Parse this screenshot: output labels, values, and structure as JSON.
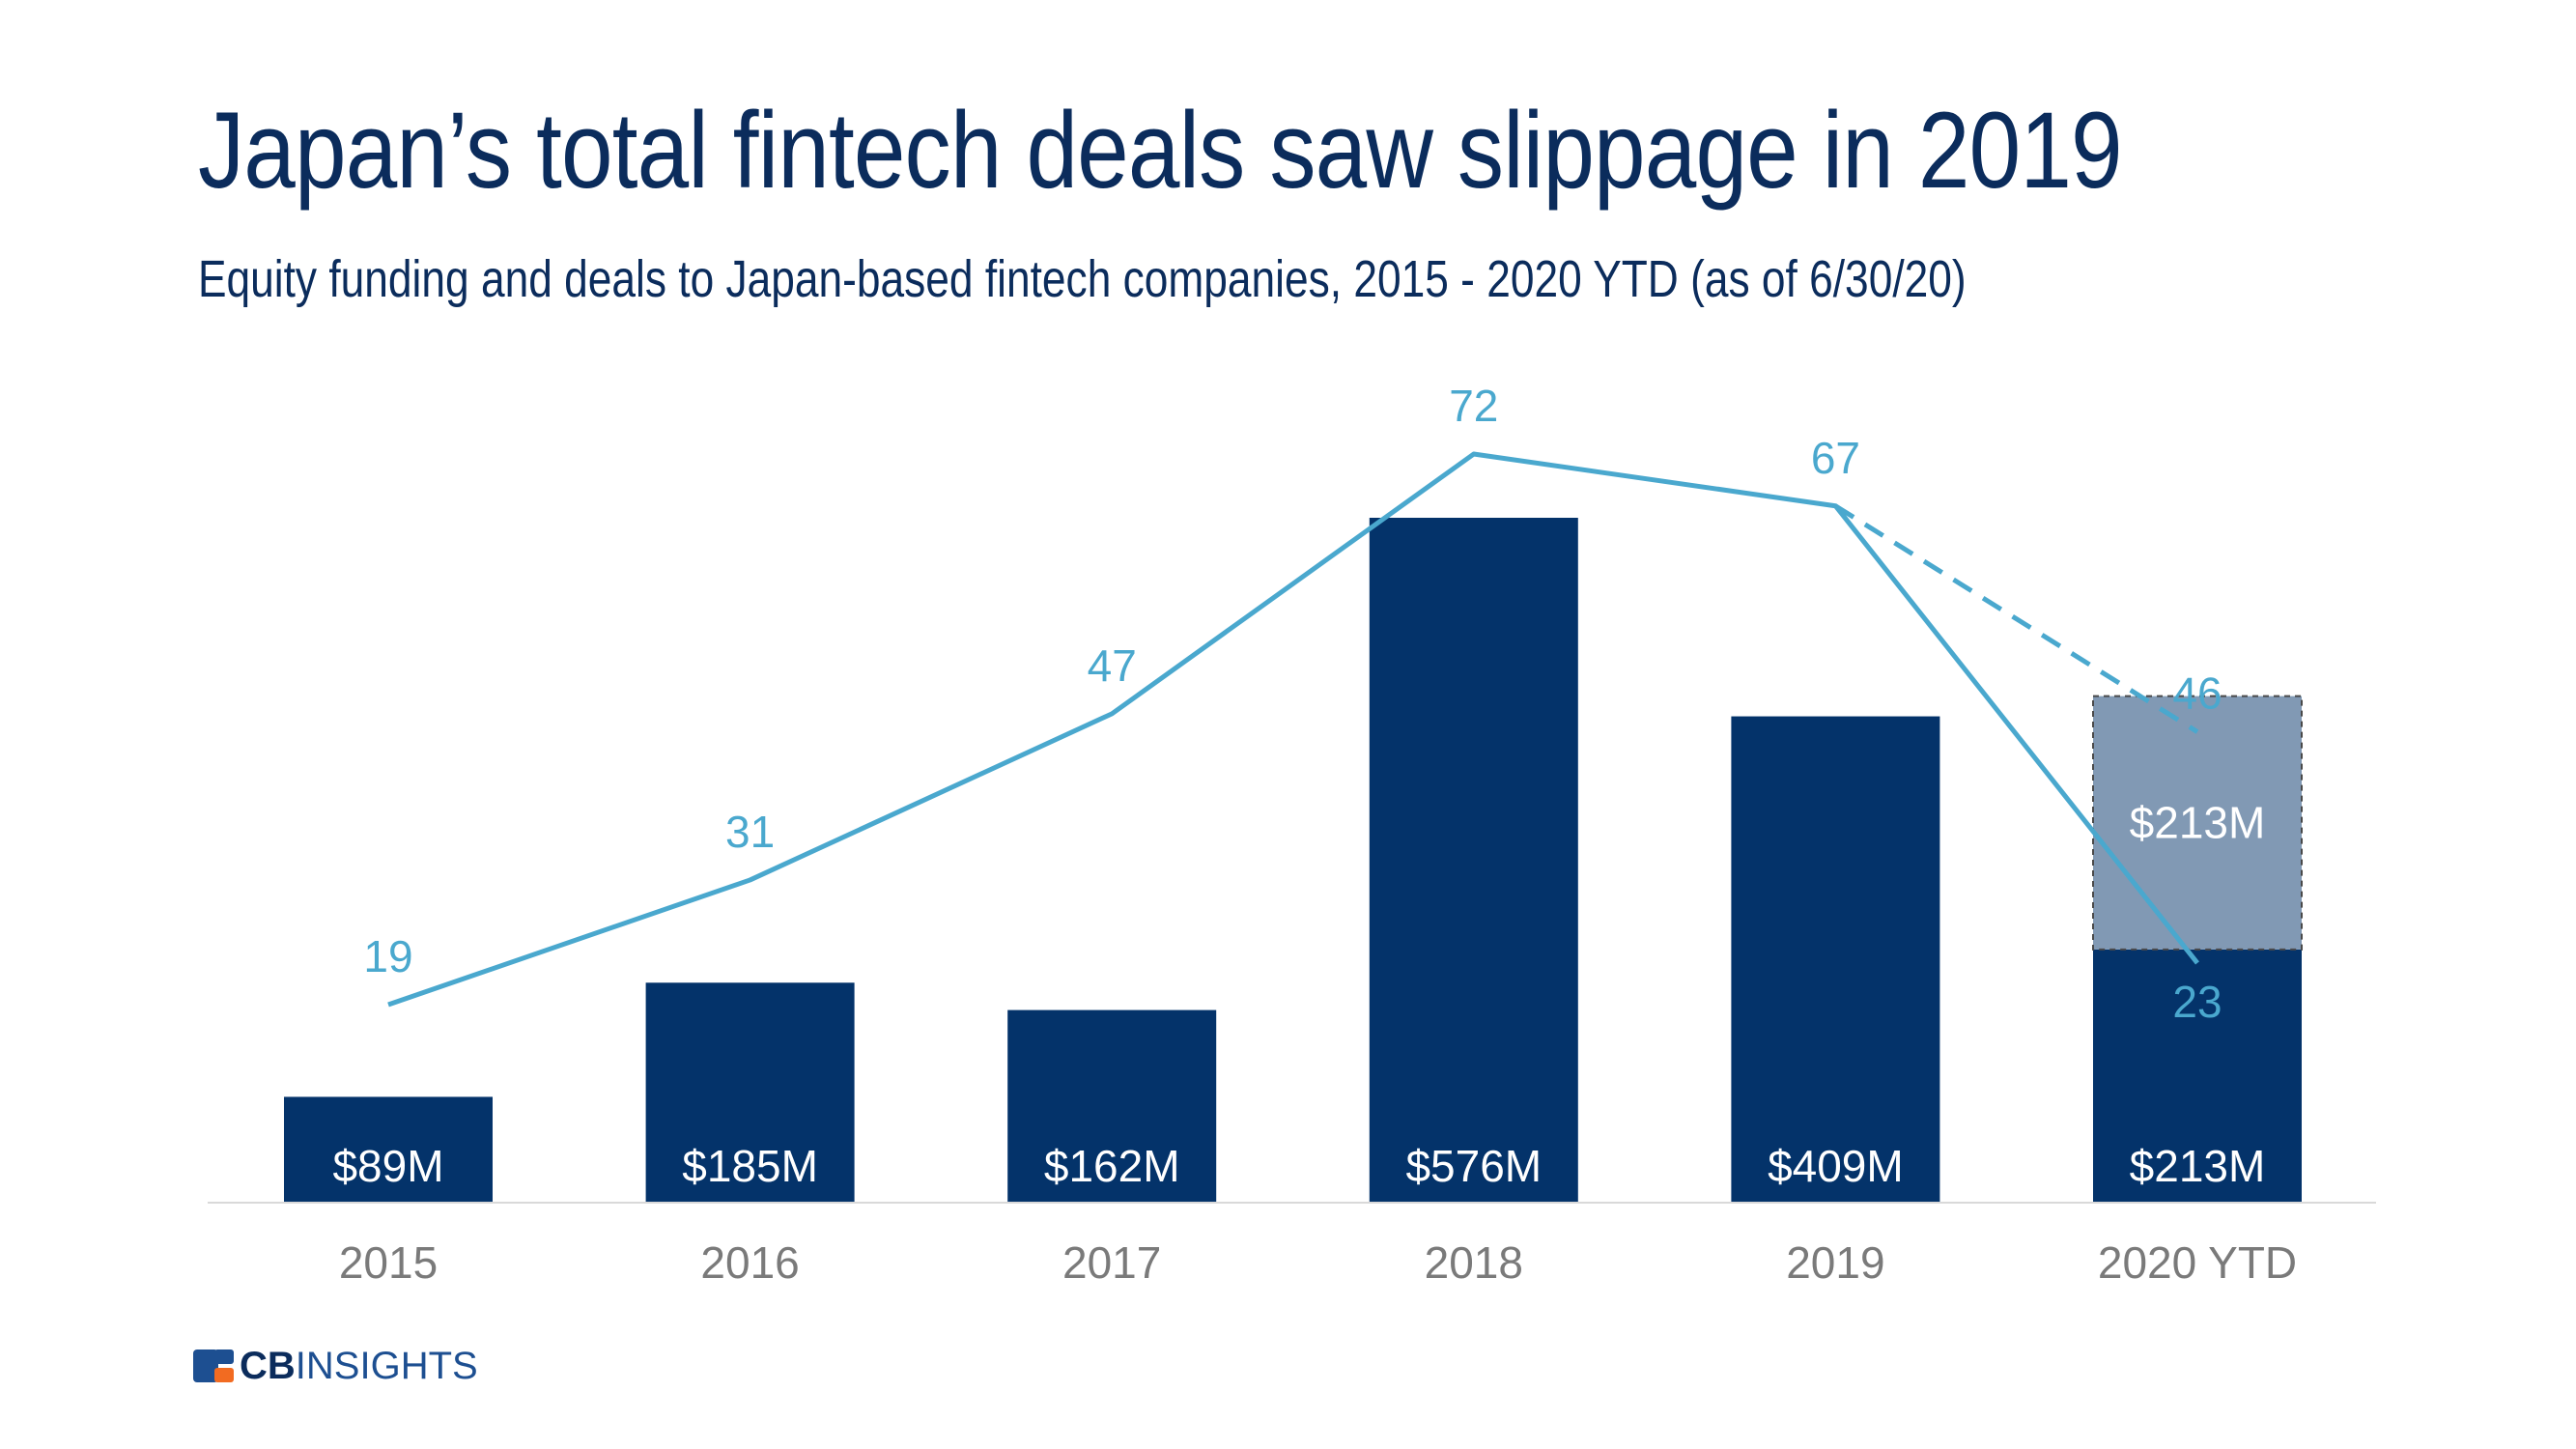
{
  "header": {
    "title": "Japan’s total fintech deals saw slippage in 2019",
    "subtitle": "Equity funding and deals to Japan-based fintech companies, 2015 - 2020 YTD (as of 6/30/20)"
  },
  "logo": {
    "bold": "CB",
    "rest": "INSIGHTS"
  },
  "colors": {
    "bar": "#04336a",
    "bar_projected": "#8199b4",
    "line": "#4aa8ce",
    "text": "#0b2c5c",
    "axis_label": "#7a7a7a",
    "bar_label": "#ffffff",
    "logo_blue": "#1d4f91",
    "logo_orange": "#f26b21"
  },
  "chart_data": {
    "type": "bar",
    "categories": [
      "2015",
      "2016",
      "2017",
      "2018",
      "2019",
      "2020 YTD"
    ],
    "funding": {
      "values": [
        89,
        185,
        162,
        576,
        409,
        213
      ],
      "labels": [
        "$89M",
        "$185M",
        "$162M",
        "$576M",
        "$409M",
        "$213M"
      ],
      "projected_extra": {
        "category": "2020 YTD",
        "value": 213,
        "label": "$213M"
      },
      "ylim": [
        0,
        720
      ]
    },
    "deals": {
      "values": [
        19,
        31,
        47,
        72,
        67,
        23
      ],
      "labels": [
        "19",
        "31",
        "47",
        "72",
        "67",
        "23"
      ],
      "projected": {
        "from_category": "2019",
        "to_category": "2020 YTD",
        "value": 46,
        "label": "46"
      },
      "ylim": [
        0,
        95
      ]
    },
    "grid": false,
    "legend": "none"
  }
}
